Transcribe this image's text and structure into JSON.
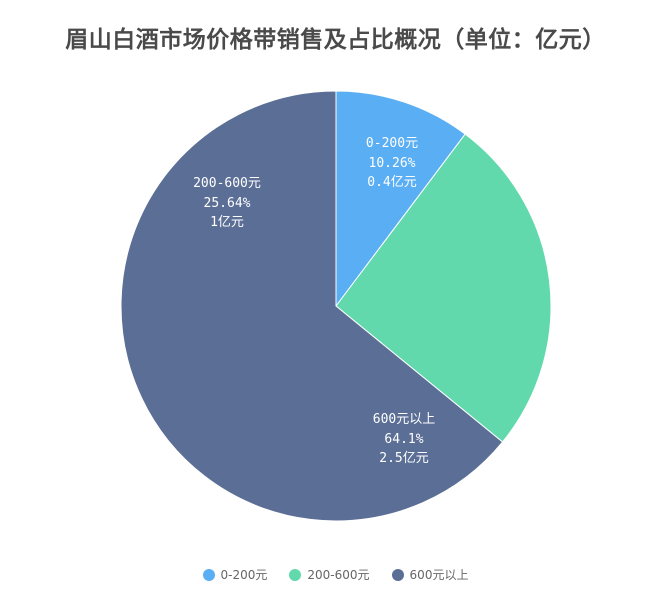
{
  "chart_data": {
    "type": "pie",
    "title": "眉山白酒市场价格带销售及占比概况（单位：亿元）",
    "unit": "亿元",
    "categories": [
      "0-200元",
      "200-600元",
      "600元以上"
    ],
    "values": [
      0.4,
      1,
      2.5
    ],
    "percentages": [
      "10.26%",
      "25.64%",
      "64.1%"
    ],
    "value_labels": [
      "0.4亿元",
      "1亿元",
      "2.5亿元"
    ],
    "colors": [
      "#5AAEF3",
      "#62D9AD",
      "#5B6E96"
    ],
    "legend_position": "bottom",
    "start_angle": "12 o'clock, clockwise"
  },
  "title": "眉山白酒市场价格带销售及占比概况（单位：亿元）",
  "slices": [
    {
      "name": "0-200元",
      "percent": "10.26%",
      "value": "0.4亿元"
    },
    {
      "name": "200-600元",
      "percent": "25.64%",
      "value": "1亿元"
    },
    {
      "name": "600元以上",
      "percent": "64.1%",
      "value": "2.5亿元"
    }
  ],
  "legend": [
    {
      "label": "0-200元",
      "color": "#5AAEF3"
    },
    {
      "label": "200-600元",
      "color": "#62D9AD"
    },
    {
      "label": "600元以上",
      "color": "#5B6E96"
    }
  ]
}
